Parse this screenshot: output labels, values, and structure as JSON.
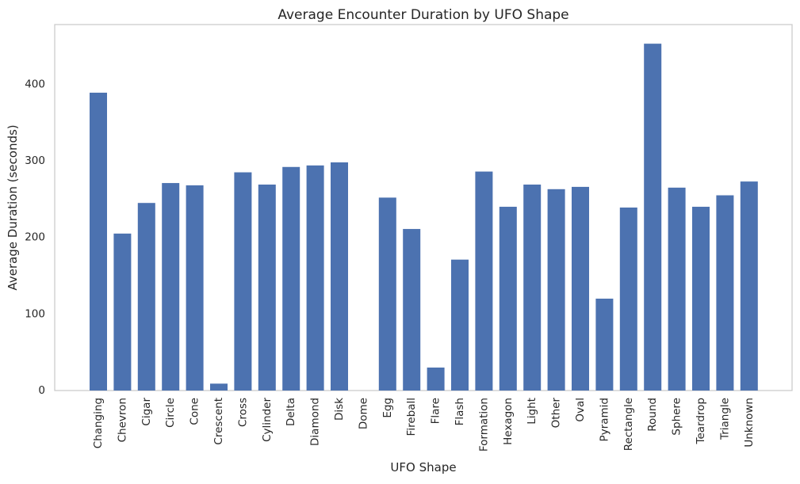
{
  "chart_data": {
    "type": "bar",
    "title": "Average Encounter Duration by UFO Shape",
    "xlabel": "UFO Shape",
    "ylabel": "Average Duration (seconds)",
    "ylim": [
      0,
      478
    ],
    "yticks": [
      0,
      100,
      200,
      300,
      400
    ],
    "grid": false,
    "categories": [
      "Changing",
      "Chevron",
      "Cigar",
      "Circle",
      "Cone",
      "Crescent",
      "Cross",
      "Cylinder",
      "Delta",
      "Diamond",
      "Disk",
      "Dome",
      "Egg",
      "Fireball",
      "Flare",
      "Flash",
      "Formation",
      "Hexagon",
      "Light",
      "Other",
      "Oval",
      "Pyramid",
      "Rectangle",
      "Round",
      "Sphere",
      "Teardrop",
      "Triangle",
      "Unknown"
    ],
    "values": [
      389,
      205,
      245,
      271,
      268,
      9,
      285,
      269,
      292,
      294,
      298,
      0,
      252,
      211,
      30,
      171,
      286,
      240,
      269,
      263,
      266,
      120,
      239,
      453,
      265,
      240,
      255,
      273
    ],
    "colors": {
      "bar": "#4c72b0",
      "axes": "#cccccc",
      "text": "#262626"
    }
  }
}
